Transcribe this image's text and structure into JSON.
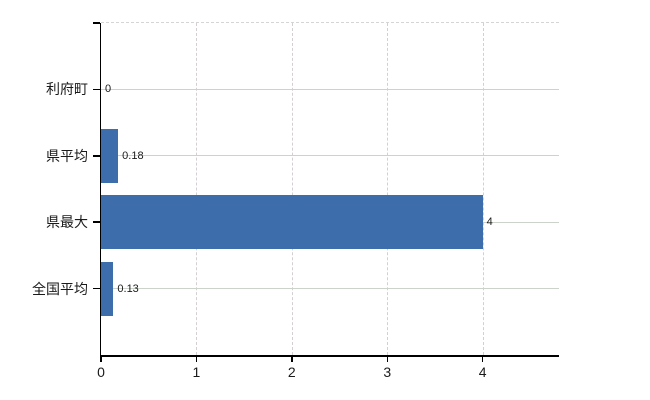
{
  "chart_data": {
    "type": "bar",
    "orientation": "horizontal",
    "title": "",
    "xlabel": "",
    "ylabel": "",
    "categories": [
      "利府町",
      "県平均",
      "県最大",
      "全国平均"
    ],
    "values": [
      0,
      0.18,
      4,
      0.13
    ],
    "value_labels": [
      "0",
      "0.18",
      "4",
      "0.13"
    ],
    "x_tick_values": [
      0,
      1,
      2,
      3,
      4
    ],
    "x_tick_labels": [
      "0",
      "1",
      "2",
      "3",
      "4"
    ],
    "xlim": [
      0,
      4.8
    ],
    "grid": true,
    "legend": false,
    "gridline_style": {
      "horizontal": "solid",
      "vertical": "dashed",
      "top_border": "dashed"
    },
    "colors": {
      "bar": "#3e6dab",
      "axis": "#000000",
      "h_gridline": "#ccd3ca",
      "v_gridline": "#d3cfd3",
      "top_border": "#d7d4d4",
      "text": "#1a1a1a",
      "background": "#ffffff"
    }
  }
}
